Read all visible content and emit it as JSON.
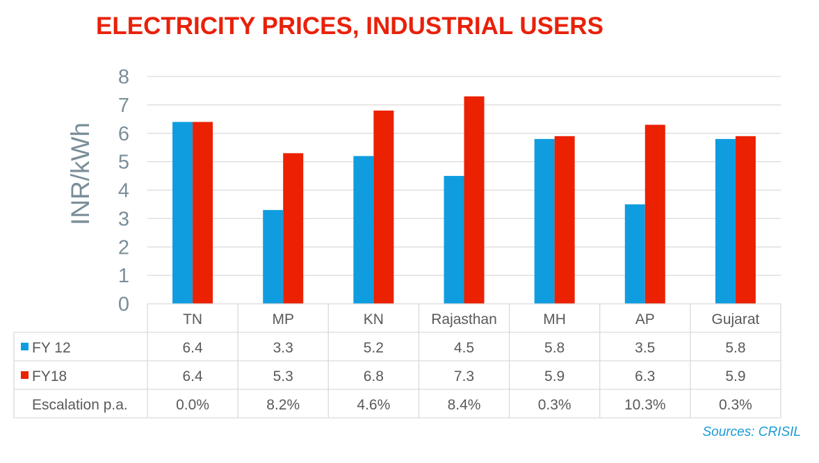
{
  "chart_data": {
    "type": "bar",
    "title": "ELECTRICITY PRICES, INDUSTRIAL USERS",
    "ylabel": "INR/kWh",
    "xlabel": "",
    "ylim": [
      0,
      8
    ],
    "yticks": [
      "0",
      "1",
      "2",
      "3",
      "4",
      "5",
      "6",
      "7",
      "8"
    ],
    "grid": true,
    "categories": [
      "TN",
      "MP",
      "KN",
      "Rajasthan",
      "MH",
      "AP",
      "Gujarat"
    ],
    "series": [
      {
        "name": "FY 12",
        "color": "#0f9de0",
        "values": [
          6.4,
          3.3,
          5.2,
          4.5,
          5.8,
          3.5,
          5.8
        ],
        "labels": [
          "6.4",
          "3.3",
          "5.2",
          "4.5",
          "5.8",
          "3.5",
          "5.8"
        ]
      },
      {
        "name": "FY18",
        "color": "#eb2102",
        "values": [
          6.4,
          5.3,
          6.8,
          7.3,
          5.9,
          6.3,
          5.9
        ],
        "labels": [
          "6.4",
          "5.3",
          "6.8",
          "7.3",
          "5.9",
          "6.3",
          "5.9"
        ]
      }
    ],
    "table_extra_rows": [
      {
        "name": "Escalation p.a.",
        "labels": [
          "0.0%",
          "8.2%",
          "4.6%",
          "8.4%",
          "0.3%",
          "10.3%",
          "0.3%"
        ]
      }
    ],
    "legend": "data-table"
  },
  "source": "Sources: CRISIL"
}
